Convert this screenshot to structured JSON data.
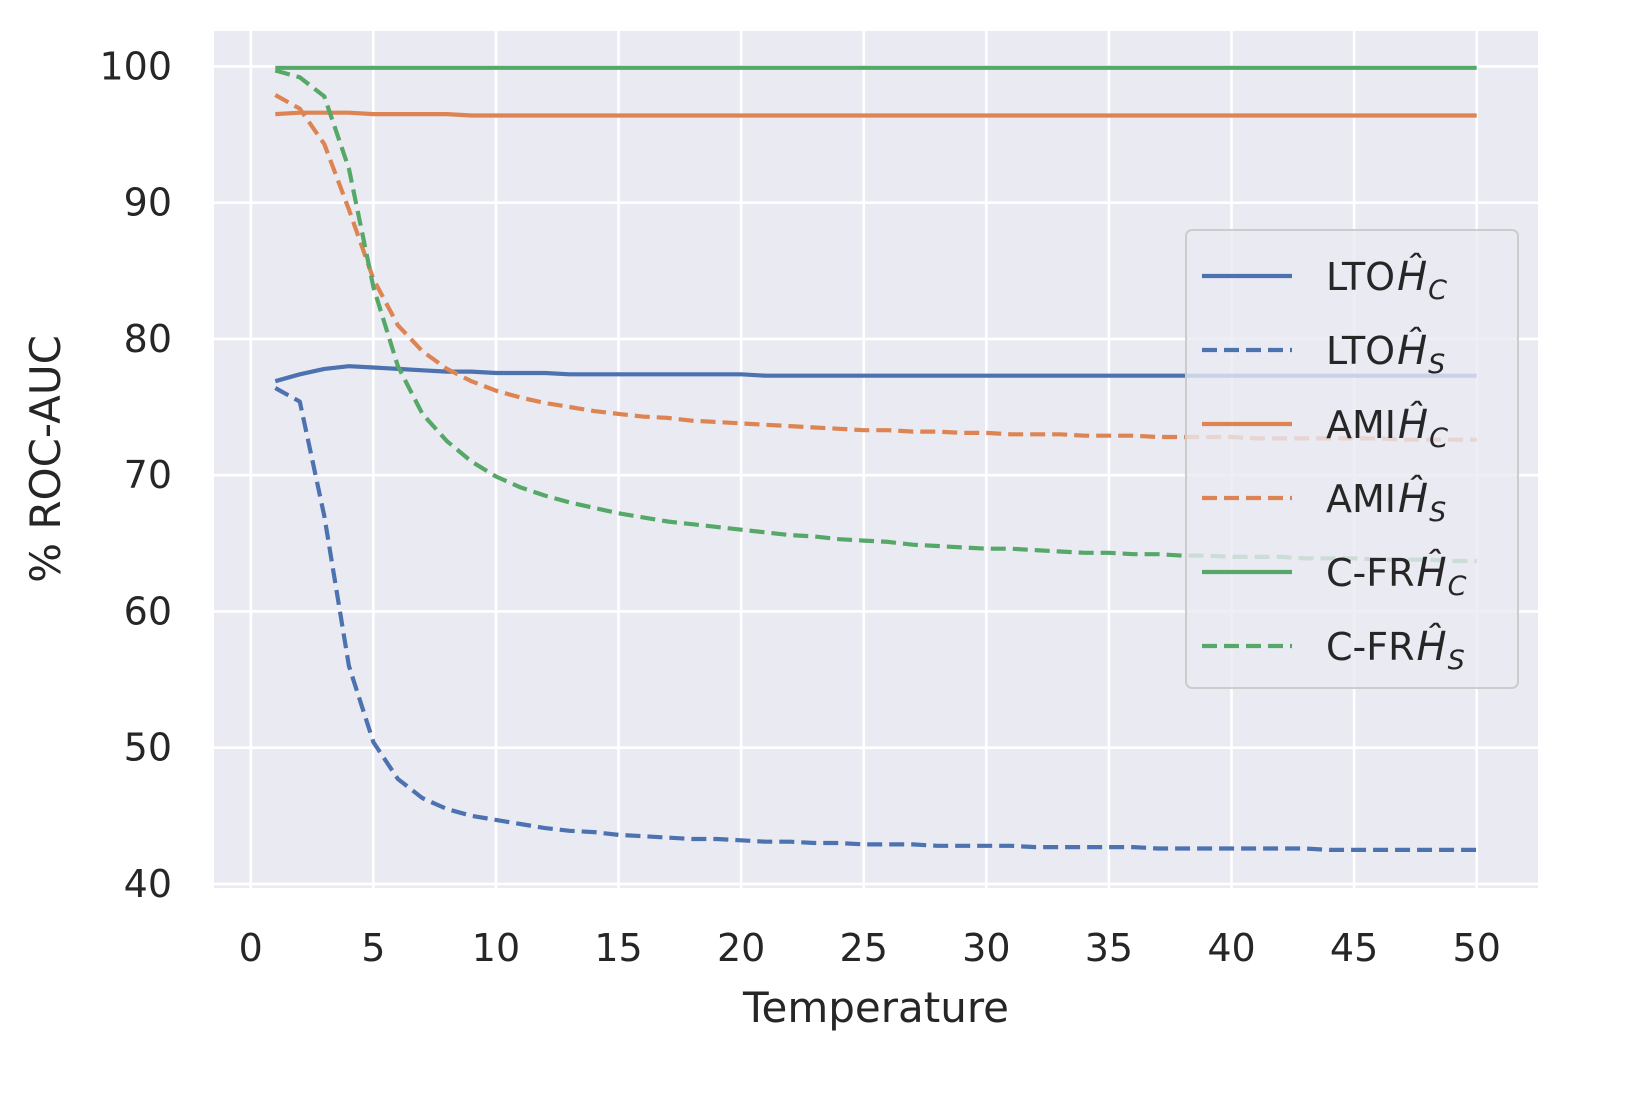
{
  "chart_data": {
    "type": "line",
    "title": "",
    "xlabel": "Temperature",
    "ylabel": "% ROC-AUC",
    "xlim": [
      -1.5,
      52.5
    ],
    "ylim": [
      39.7,
      102.6
    ],
    "xticks": [
      0,
      5,
      10,
      15,
      20,
      25,
      30,
      35,
      40,
      45,
      50
    ],
    "yticks": [
      40,
      50,
      60,
      70,
      80,
      90,
      100
    ],
    "grid": true,
    "legend_position": "center-right",
    "x": [
      1,
      2,
      3,
      4,
      5,
      6,
      7,
      8,
      9,
      10,
      11,
      12,
      13,
      14,
      15,
      16,
      17,
      18,
      19,
      20,
      21,
      22,
      23,
      24,
      25,
      26,
      27,
      28,
      29,
      30,
      31,
      32,
      33,
      34,
      35,
      36,
      37,
      38,
      39,
      40,
      41,
      42,
      43,
      44,
      45,
      46,
      47,
      48,
      49,
      50
    ],
    "series": [
      {
        "name": "LTO",
        "subscript": "C",
        "color": "#4c72b0",
        "dash": "solid",
        "values": [
          76.9,
          77.4,
          77.8,
          78.0,
          77.9,
          77.8,
          77.7,
          77.6,
          77.6,
          77.5,
          77.5,
          77.5,
          77.4,
          77.4,
          77.4,
          77.4,
          77.4,
          77.4,
          77.4,
          77.4,
          77.3,
          77.3,
          77.3,
          77.3,
          77.3,
          77.3,
          77.3,
          77.3,
          77.3,
          77.3,
          77.3,
          77.3,
          77.3,
          77.3,
          77.3,
          77.3,
          77.3,
          77.3,
          77.3,
          77.3,
          77.3,
          77.3,
          77.3,
          77.3,
          77.3,
          77.3,
          77.3,
          77.3,
          77.3,
          77.3
        ]
      },
      {
        "name": "LTO",
        "subscript": "S",
        "color": "#4c72b0",
        "dash": "dashed",
        "values": [
          76.4,
          75.4,
          67.0,
          56.0,
          50.4,
          47.7,
          46.3,
          45.5,
          45.0,
          44.7,
          44.4,
          44.1,
          43.9,
          43.8,
          43.6,
          43.5,
          43.4,
          43.3,
          43.3,
          43.2,
          43.1,
          43.1,
          43.0,
          43.0,
          42.9,
          42.9,
          42.9,
          42.8,
          42.8,
          42.8,
          42.8,
          42.7,
          42.7,
          42.7,
          42.7,
          42.7,
          42.6,
          42.6,
          42.6,
          42.6,
          42.6,
          42.6,
          42.6,
          42.5,
          42.5,
          42.5,
          42.5,
          42.5,
          42.5,
          42.5
        ]
      },
      {
        "name": "AMI",
        "subscript": "C",
        "color": "#dd8452",
        "dash": "solid",
        "values": [
          96.5,
          96.6,
          96.6,
          96.6,
          96.5,
          96.5,
          96.5,
          96.5,
          96.4,
          96.4,
          96.4,
          96.4,
          96.4,
          96.4,
          96.4,
          96.4,
          96.4,
          96.4,
          96.4,
          96.4,
          96.4,
          96.4,
          96.4,
          96.4,
          96.4,
          96.4,
          96.4,
          96.4,
          96.4,
          96.4,
          96.4,
          96.4,
          96.4,
          96.4,
          96.4,
          96.4,
          96.4,
          96.4,
          96.4,
          96.4,
          96.4,
          96.4,
          96.4,
          96.4,
          96.4,
          96.4,
          96.4,
          96.4,
          96.4,
          96.4
        ]
      },
      {
        "name": "AMI",
        "subscript": "S",
        "color": "#dd8452",
        "dash": "dashed",
        "values": [
          97.9,
          96.9,
          94.3,
          89.5,
          84.4,
          81.0,
          79.1,
          77.8,
          76.9,
          76.2,
          75.7,
          75.3,
          75.0,
          74.7,
          74.5,
          74.3,
          74.2,
          74.0,
          73.9,
          73.8,
          73.7,
          73.6,
          73.5,
          73.4,
          73.3,
          73.3,
          73.2,
          73.2,
          73.1,
          73.1,
          73.0,
          73.0,
          73.0,
          72.9,
          72.9,
          72.9,
          72.8,
          72.8,
          72.8,
          72.8,
          72.7,
          72.7,
          72.7,
          72.7,
          72.7,
          72.7,
          72.6,
          72.6,
          72.6,
          72.6
        ]
      },
      {
        "name": "C-FR",
        "subscript": "C",
        "color": "#55a868",
        "dash": "solid",
        "values": [
          99.9,
          99.9,
          99.9,
          99.9,
          99.9,
          99.9,
          99.9,
          99.9,
          99.9,
          99.9,
          99.9,
          99.9,
          99.9,
          99.9,
          99.9,
          99.9,
          99.9,
          99.9,
          99.9,
          99.9,
          99.9,
          99.9,
          99.9,
          99.9,
          99.9,
          99.9,
          99.9,
          99.9,
          99.9,
          99.9,
          99.9,
          99.9,
          99.9,
          99.9,
          99.9,
          99.9,
          99.9,
          99.9,
          99.9,
          99.9,
          99.9,
          99.9,
          99.9,
          99.9,
          99.9,
          99.9,
          99.9,
          99.9,
          99.9,
          99.9
        ]
      },
      {
        "name": "C-FR",
        "subscript": "S",
        "color": "#55a868",
        "dash": "dashed",
        "values": [
          99.7,
          99.2,
          97.8,
          92.5,
          83.8,
          78.0,
          74.5,
          72.5,
          71.0,
          69.9,
          69.1,
          68.5,
          68.0,
          67.6,
          67.2,
          66.9,
          66.6,
          66.4,
          66.2,
          66.0,
          65.8,
          65.6,
          65.5,
          65.3,
          65.2,
          65.1,
          64.9,
          64.8,
          64.7,
          64.6,
          64.6,
          64.5,
          64.4,
          64.3,
          64.3,
          64.2,
          64.2,
          64.1,
          64.1,
          64.0,
          64.0,
          64.0,
          63.9,
          63.9,
          63.9,
          63.8,
          63.8,
          63.8,
          63.7,
          63.7
        ]
      }
    ]
  }
}
